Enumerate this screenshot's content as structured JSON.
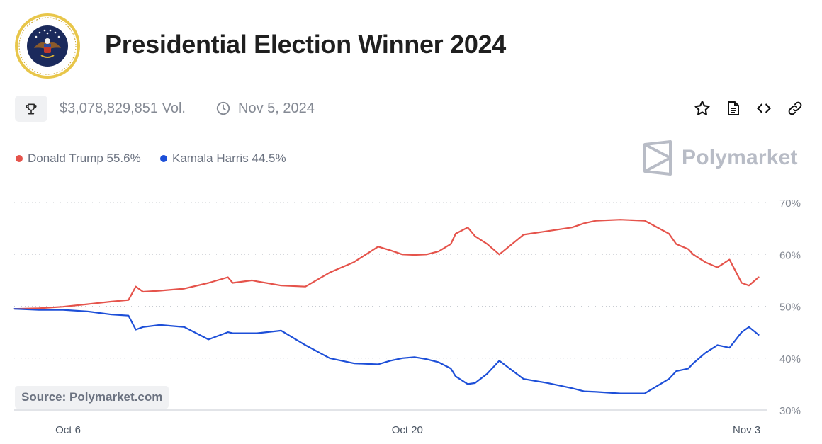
{
  "header": {
    "title": "Presidential Election Winner 2024",
    "seal_icon": "presidential-seal-icon"
  },
  "meta": {
    "volume": "$3,078,829,851 Vol.",
    "date": "Nov 5, 2024",
    "trophy_icon": "trophy-icon",
    "clock_icon": "clock-icon"
  },
  "actions": [
    {
      "name": "star-icon"
    },
    {
      "name": "document-icon"
    },
    {
      "name": "embed-code-icon"
    },
    {
      "name": "link-icon"
    }
  ],
  "legend": [
    {
      "label": "Donald Trump 55.6%",
      "color": "#e5534b"
    },
    {
      "label": "Kamala Harris 44.5%",
      "color": "#1d4fd8"
    }
  ],
  "brand": {
    "name": "Polymarket"
  },
  "source": "Source: Polymarket.com",
  "chart_data": {
    "type": "line",
    "title": "",
    "xlabel": "",
    "ylabel": "",
    "ylim": [
      30,
      70
    ],
    "y_ticks": [
      70,
      60,
      50,
      40,
      30
    ],
    "y_tick_labels": [
      "70%",
      "60%",
      "50%",
      "40%",
      "30%"
    ],
    "x_tick_labels": [
      {
        "label": "Oct 6",
        "day": 6
      },
      {
        "label": "Oct 20",
        "day": 20
      },
      {
        "label": "Nov 3",
        "day": 34
      }
    ],
    "x_range_days": [
      6,
      35
    ],
    "grid": true,
    "series": [
      {
        "name": "Donald Trump",
        "color": "#e5534b",
        "x": [
          4,
          5,
          6,
          7,
          8,
          8.7,
          9,
          9.3,
          10,
          11,
          12,
          12.8,
          13,
          13.8,
          14,
          15,
          16,
          17,
          18,
          19,
          19.5,
          20,
          20.5,
          21,
          21.5,
          22,
          22.2,
          22.7,
          23,
          23.5,
          24,
          25,
          26,
          27,
          27.5,
          28,
          29,
          30,
          31,
          31.3,
          31.8,
          32,
          32.5,
          33,
          33.5,
          34,
          34.3,
          34.7
        ],
        "y": [
          49.5,
          49.6,
          49.9,
          50.4,
          50.9,
          51.2,
          53.8,
          52.8,
          53.0,
          53.4,
          54.5,
          55.6,
          54.5,
          55.0,
          54.8,
          54.0,
          53.8,
          56.5,
          58.5,
          61.5,
          60.8,
          60.0,
          59.9,
          60.0,
          60.6,
          62.0,
          64.0,
          65.2,
          63.5,
          62.0,
          60.0,
          63.8,
          64.5,
          65.2,
          66.0,
          66.5,
          66.7,
          66.5,
          64.0,
          62.0,
          61.0,
          60.0,
          58.5,
          57.5,
          59.0,
          54.5,
          54.0,
          55.6
        ]
      },
      {
        "name": "Kamala Harris",
        "color": "#1d4fd8",
        "x": [
          4,
          5,
          6,
          7,
          8,
          8.7,
          9,
          9.3,
          10,
          11,
          12,
          12.8,
          13,
          13.8,
          14,
          15,
          16,
          17,
          18,
          19,
          19.5,
          20,
          20.5,
          21,
          21.5,
          22,
          22.2,
          22.7,
          23,
          23.5,
          24,
          25,
          26,
          27,
          27.5,
          28,
          29,
          30,
          31,
          31.3,
          31.8,
          32,
          32.5,
          33,
          33.5,
          34,
          34.3,
          34.7
        ],
        "y": [
          49.5,
          49.3,
          49.3,
          49.0,
          48.4,
          48.2,
          45.5,
          46.0,
          46.4,
          46.0,
          43.6,
          45.0,
          44.8,
          44.8,
          44.8,
          45.3,
          42.5,
          40.0,
          39.0,
          38.8,
          39.5,
          40.0,
          40.2,
          39.8,
          39.2,
          38.0,
          36.5,
          35.0,
          35.2,
          37.0,
          39.5,
          36.0,
          35.2,
          34.2,
          33.6,
          33.5,
          33.2,
          33.2,
          36.0,
          37.5,
          38.0,
          39.0,
          41.0,
          42.5,
          42.0,
          45.0,
          46.0,
          44.5
        ]
      }
    ]
  }
}
